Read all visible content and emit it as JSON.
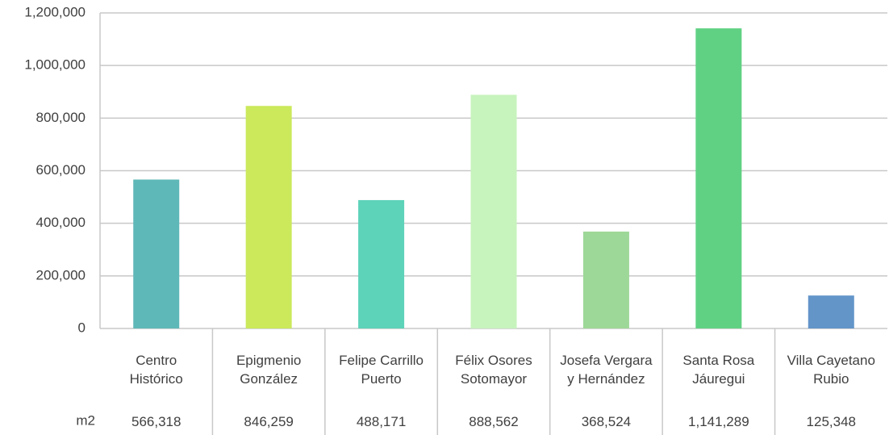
{
  "chart_data": {
    "type": "bar",
    "categories": [
      "Centro Histórico",
      "Epigmenio González",
      "Felipe Carrillo Puerto",
      "Félix Osores Sotomayor",
      "Josefa Vergara y Hernández",
      "Santa Rosa Jáuregui",
      "Villa Cayetano Rubio"
    ],
    "values": [
      566318,
      846259,
      488171,
      888562,
      368524,
      1141289,
      125348
    ],
    "value_labels": [
      "566,318",
      "846,259",
      "488,171",
      "888,562",
      "368,524",
      "1,141,289",
      "125,348"
    ],
    "row_label": "m2",
    "colors": [
      "#5fb8b8",
      "#cbe95b",
      "#5dd3b9",
      "#c7f3bd",
      "#9dd898",
      "#60d183",
      "#6395c9"
    ],
    "ylim": [
      0,
      1200000
    ],
    "yticks": [
      0,
      {
        "value": 200000,
        "label": "200,000"
      },
      {
        "value": 400000,
        "label": "400,000"
      },
      {
        "value": 600000,
        "label": "600,000"
      },
      {
        "value": 800000,
        "label": "800,000"
      },
      {
        "value": 1000000,
        "label": "1,000,000"
      },
      {
        "value": 1200000,
        "label": "1,200,000"
      }
    ],
    "grid": true
  }
}
